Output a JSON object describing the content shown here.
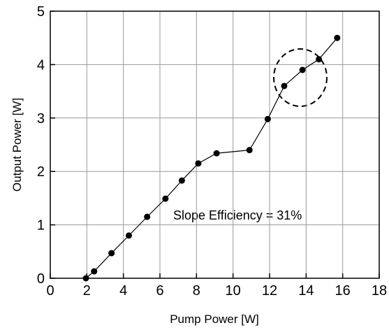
{
  "chart_data": {
    "type": "line",
    "x_label": "Pump Power [W]",
    "y_label": "Output Power [W]",
    "annotation": "Slope Efficiency = 31%",
    "x": [
      1.95,
      2.4,
      3.35,
      4.3,
      5.3,
      6.3,
      7.2,
      8.1,
      9.1,
      10.9,
      11.9,
      12.8,
      13.8,
      14.7,
      15.7
    ],
    "series": [
      {
        "name": "Output Power",
        "color": "#000000",
        "values": [
          0.0,
          0.13,
          0.47,
          0.8,
          1.15,
          1.49,
          1.83,
          2.15,
          2.34,
          2.4,
          2.98,
          3.6,
          3.9,
          4.1,
          4.5
        ]
      }
    ],
    "xlim": [
      0,
      18
    ],
    "xticks": [
      0,
      2,
      4,
      6,
      8,
      10,
      12,
      14,
      16,
      18
    ],
    "ylim": [
      0,
      5
    ],
    "yticks": [
      0,
      1,
      2,
      3,
      4,
      5
    ],
    "grid": true
  }
}
